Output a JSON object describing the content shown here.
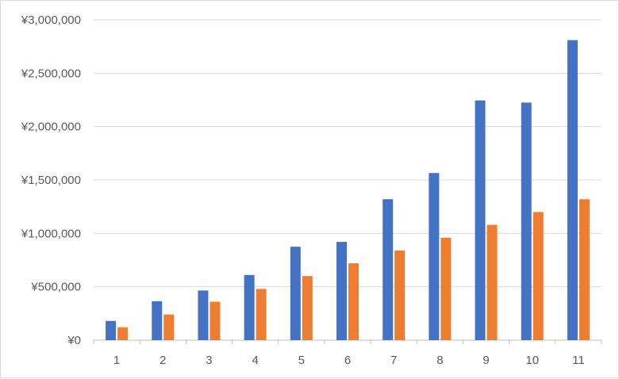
{
  "chart_data": {
    "type": "bar",
    "title": "",
    "xlabel": "",
    "ylabel": "",
    "categories": [
      "1",
      "2",
      "3",
      "4",
      "5",
      "6",
      "7",
      "8",
      "9",
      "10",
      "11"
    ],
    "series": [
      {
        "color": "#4472c4",
        "values": [
          180000,
          365000,
          465000,
          610000,
          875000,
          920000,
          1320000,
          1565000,
          2245000,
          2225000,
          2810000
        ]
      },
      {
        "color": "#ed7d31",
        "values": [
          120000,
          240000,
          360000,
          480000,
          600000,
          720000,
          840000,
          960000,
          1080000,
          1200000,
          1320000
        ]
      }
    ],
    "ylim": [
      0,
      3000000
    ],
    "yticks": [
      {
        "value": 0,
        "label": "¥0"
      },
      {
        "value": 500000,
        "label": "¥500,000"
      },
      {
        "value": 1000000,
        "label": "¥1,000,000"
      },
      {
        "value": 1500000,
        "label": "¥1,500,000"
      },
      {
        "value": 2000000,
        "label": "¥2,000,000"
      },
      {
        "value": 2500000,
        "label": "¥2,500,000"
      },
      {
        "value": 3000000,
        "label": "¥3,000,000"
      }
    ],
    "grid": true,
    "legend": "none",
    "colors": {
      "gridline": "#d9d9d9",
      "axis": "#bfbfbf",
      "label": "#595959"
    }
  }
}
